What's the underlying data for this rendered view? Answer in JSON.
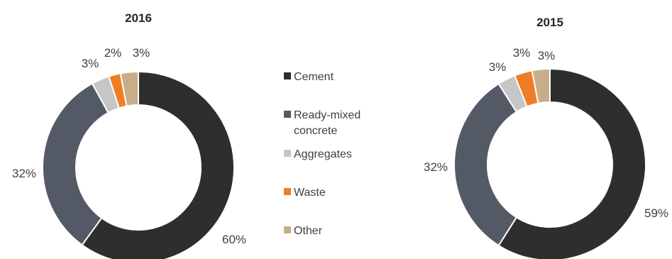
{
  "legend": [
    {
      "label": "Cement",
      "color": "#2e2e2e"
    },
    {
      "label": "Ready-mixed concrete",
      "color": "#535a66"
    },
    {
      "label": "Aggregates",
      "color": "#c6c6c6"
    },
    {
      "label": "Waste",
      "color": "#f07d23"
    },
    {
      "label": "Other",
      "color": "#c8ae88"
    }
  ],
  "chart_data": [
    {
      "type": "pie",
      "donut": true,
      "title": "2016",
      "categories": [
        "Cement",
        "Ready-mixed concrete",
        "Aggregates",
        "Waste",
        "Other"
      ],
      "values": [
        60,
        32,
        3,
        2,
        3
      ],
      "labels": [
        "60%",
        "32%",
        "3%",
        "2%",
        "3%"
      ],
      "legend_position": "between charts"
    },
    {
      "type": "pie",
      "donut": true,
      "title": "2015",
      "categories": [
        "Cement",
        "Ready-mixed concrete",
        "Aggregates",
        "Waste",
        "Other"
      ],
      "values": [
        59,
        32,
        3,
        3,
        3
      ],
      "labels": [
        "59%",
        "32%",
        "3%",
        "3%",
        "3%"
      ],
      "legend_position": "between charts"
    }
  ]
}
